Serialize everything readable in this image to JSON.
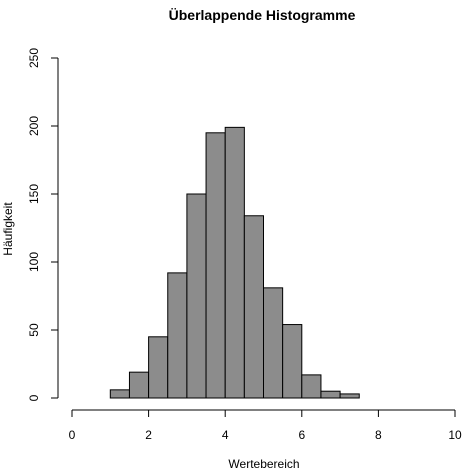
{
  "chart_data": {
    "type": "bar",
    "title": "Überlappende Histogramme",
    "xlabel": "Wertebereich",
    "ylabel": "Häufigkeit",
    "xlim": [
      0,
      10
    ],
    "ylim": [
      0,
      250
    ],
    "x_ticks": [
      "0",
      "2",
      "4",
      "6",
      "8",
      "10"
    ],
    "y_ticks": [
      "0",
      "50",
      "100",
      "150",
      "200",
      "250"
    ],
    "bin_width": 0.5,
    "bins": [
      {
        "start": 1.0,
        "count": 6
      },
      {
        "start": 1.5,
        "count": 19
      },
      {
        "start": 2.0,
        "count": 45
      },
      {
        "start": 2.5,
        "count": 92
      },
      {
        "start": 3.0,
        "count": 150
      },
      {
        "start": 3.5,
        "count": 195
      },
      {
        "start": 4.0,
        "count": 199
      },
      {
        "start": 4.5,
        "count": 134
      },
      {
        "start": 5.0,
        "count": 81
      },
      {
        "start": 5.5,
        "count": 54
      },
      {
        "start": 6.0,
        "count": 17
      },
      {
        "start": 6.5,
        "count": 5
      },
      {
        "start": 7.0,
        "count": 3
      }
    ],
    "bar_color": "#8c8c8c",
    "grid": false
  }
}
